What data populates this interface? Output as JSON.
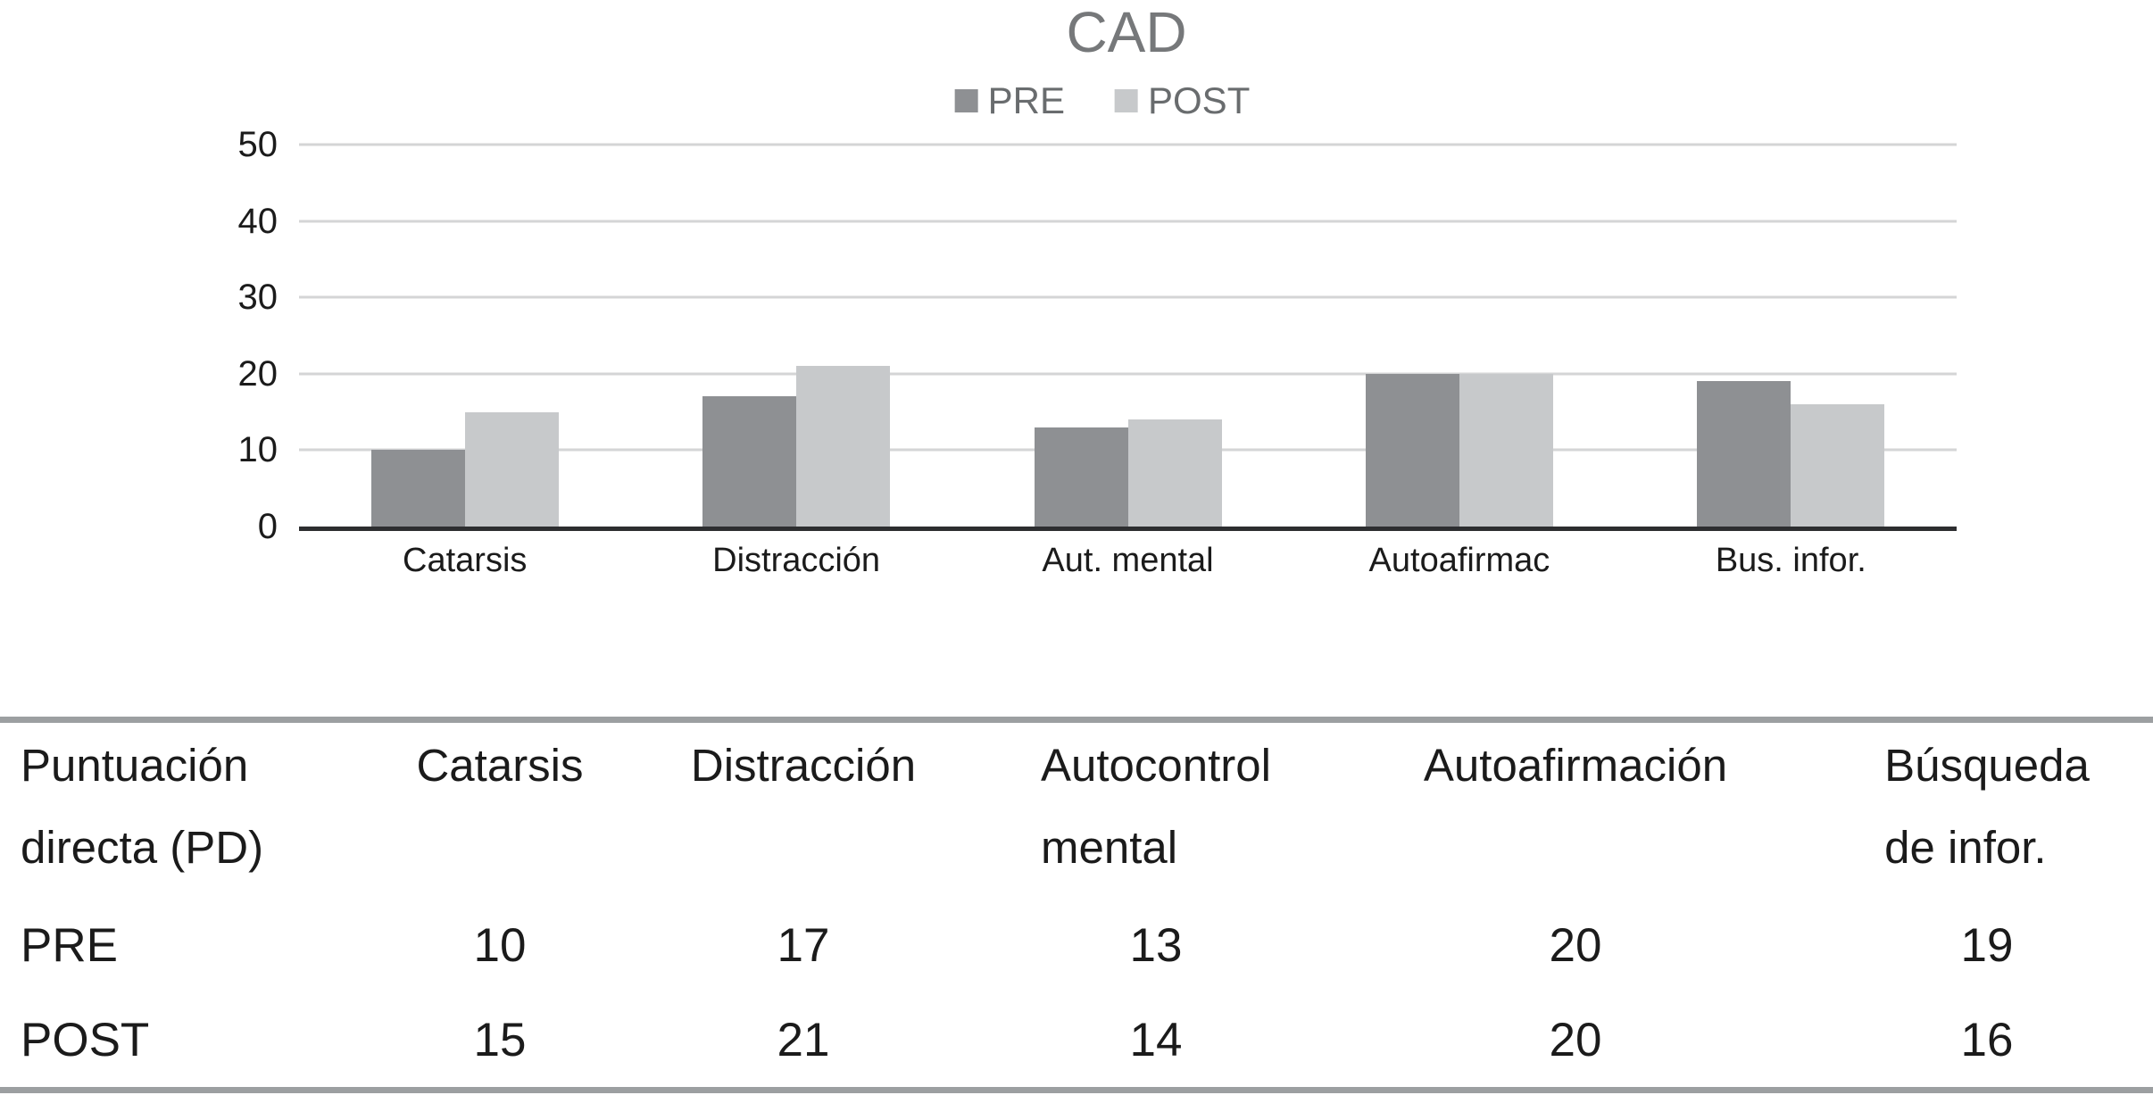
{
  "page": {
    "background": "#ffffff"
  },
  "chart_data": {
    "type": "bar",
    "title": "CAD",
    "categories": [
      "Catarsis",
      "Distracción",
      "Aut. mental",
      "Autoafirmac",
      "Bus. infor."
    ],
    "series": [
      {
        "name": "PRE",
        "values": [
          10,
          17,
          13,
          20,
          19
        ],
        "color": "#8e9093"
      },
      {
        "name": "POST",
        "values": [
          15,
          21,
          14,
          20,
          16
        ],
        "color": "#c7c9cb"
      }
    ],
    "xlabel": "",
    "ylabel": "",
    "ylim": [
      0,
      50
    ],
    "yticks": [
      50,
      40,
      30,
      20,
      10,
      0
    ],
    "grid": true,
    "legend_position": "top",
    "gridline_color": "#d4d5d6",
    "axis_line_color": "#2d2e30",
    "title_color": "#76787a",
    "legend_text_color": "#696c6e"
  },
  "table": {
    "corner_header_lines": [
      "Puntuación",
      "directa (PD)"
    ],
    "column_headers": [
      [
        "Catarsis"
      ],
      [
        "Distracción"
      ],
      [
        "Autocontrol",
        "mental"
      ],
      [
        "Autoafirmación"
      ],
      [
        "Búsqueda",
        "de infor."
      ]
    ],
    "rows": [
      {
        "label": "PRE",
        "values": [
          "10",
          "17",
          "13",
          "20",
          "19"
        ]
      },
      {
        "label": "POST",
        "values": [
          "15",
          "21",
          "14",
          "20",
          "16"
        ]
      }
    ],
    "border_color": "#9c9fa1",
    "text_color": "#1b1b1b"
  }
}
